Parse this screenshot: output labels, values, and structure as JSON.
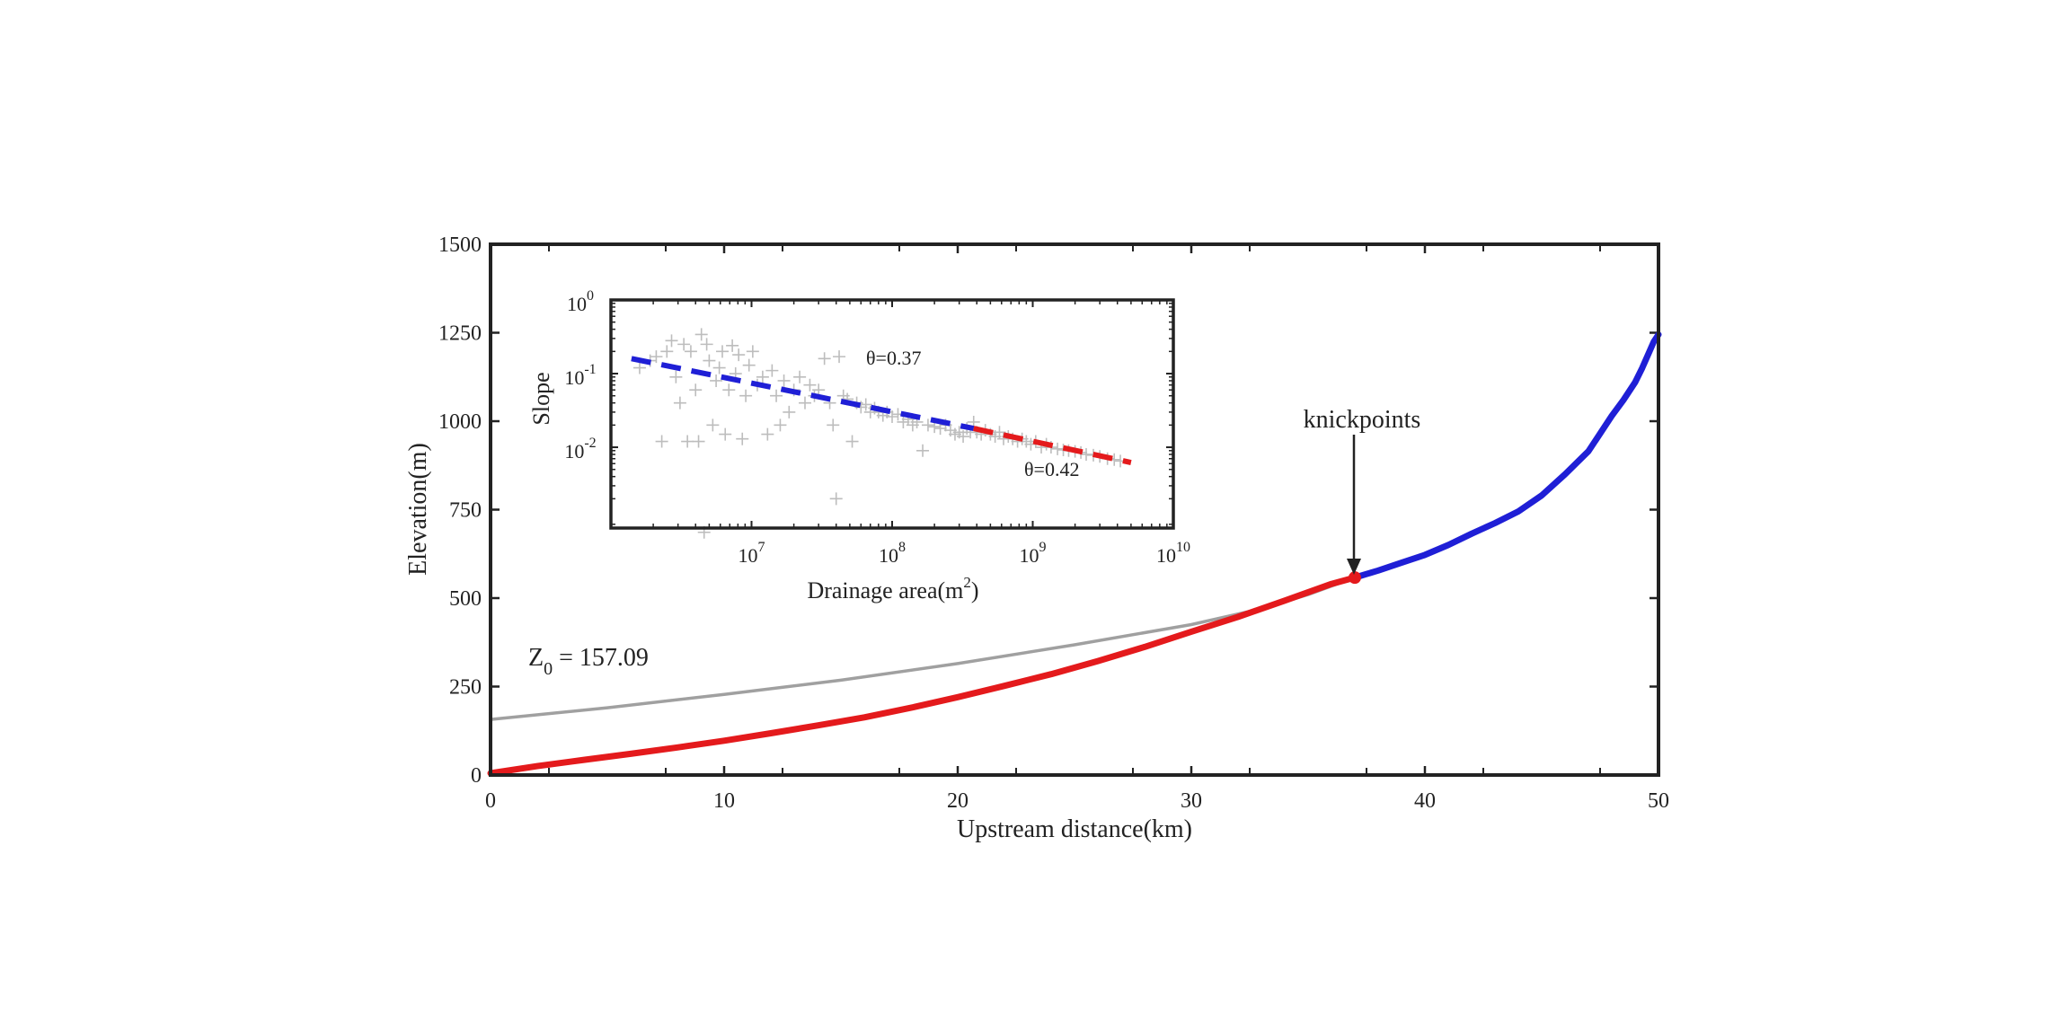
{
  "chart_data": [
    {
      "type": "line",
      "xlabel": "Upstream distance(km)",
      "ylabel": "Elevation(m)",
      "xlim": [
        0,
        50
      ],
      "ylim": [
        0,
        1500
      ],
      "xticks": [
        "0",
        "10",
        "20",
        "30",
        "40",
        "50"
      ],
      "yticks": [
        "0",
        "250",
        "500",
        "750",
        "1000",
        "1250",
        "1500"
      ],
      "series": [
        {
          "color": "#e41a1c",
          "x": [
            0,
            2,
            4,
            6,
            8,
            10,
            12,
            14,
            16,
            18,
            20,
            22,
            24,
            26,
            28,
            30,
            32,
            34,
            36,
            37
          ],
          "y": [
            5,
            25,
            43,
            60,
            78,
            97,
            118,
            140,
            163,
            190,
            220,
            252,
            285,
            322,
            362,
            405,
            447,
            493,
            540,
            558
          ]
        },
        {
          "color": "#1f1fd6",
          "x": [
            37,
            38,
            39,
            40,
            41,
            42,
            43,
            44,
            45,
            46,
            47,
            48,
            48.5,
            49,
            49.3,
            49.6,
            49.8,
            50
          ],
          "y": [
            558,
            578,
            600,
            622,
            650,
            682,
            712,
            745,
            790,
            850,
            915,
            1015,
            1060,
            1110,
            1150,
            1195,
            1225,
            1245
          ]
        },
        {
          "color": "#a0a0a0",
          "x": [
            0,
            5,
            10,
            15,
            20,
            25,
            30,
            33,
            35,
            37
          ],
          "y": [
            157,
            190,
            228,
            268,
            315,
            368,
            425,
            470,
            510,
            558
          ]
        }
      ],
      "annotations": {
        "knickpoint_label": "knickpoints",
        "knickpoint_x": 37,
        "knickpoint_y": 558,
        "z0_label": "Z",
        "z0_sub": "0",
        "z0_value": " = 157.09"
      }
    },
    {
      "type": "scatter",
      "xlabel": "Drainage area(m",
      "xlabel_sup": "2",
      "xlabel_end": ")",
      "ylabel": "Slope",
      "xscale": "log",
      "yscale": "log",
      "xlim": [
        1000000,
        10000000000
      ],
      "ylim": [
        0.0008,
        1
      ],
      "xticks": [
        {
          "base": "10",
          "exp": "7",
          "value": 10000000
        },
        {
          "base": "10",
          "exp": "8",
          "value": 100000000
        },
        {
          "base": "10",
          "exp": "9",
          "value": 1000000000
        },
        {
          "base": "10",
          "exp": "10",
          "value": 10000000000
        }
      ],
      "yticks": [
        {
          "base": "10",
          "exp": "0",
          "value": 1
        },
        {
          "base": "10",
          "exp": "-1",
          "value": 0.1
        },
        {
          "base": "10",
          "exp": "-2",
          "value": 0.01
        }
      ],
      "points": [
        [
          1600000,
          0.12
        ],
        [
          1900000,
          0.15
        ],
        [
          2100000,
          0.17
        ],
        [
          2300000,
          0.012
        ],
        [
          2500000,
          0.2
        ],
        [
          2700000,
          0.28
        ],
        [
          2900000,
          0.09
        ],
        [
          3100000,
          0.04
        ],
        [
          3300000,
          0.25
        ],
        [
          3500000,
          0.012
        ],
        [
          3700000,
          0.2
        ],
        [
          4000000,
          0.06
        ],
        [
          4200000,
          0.012
        ],
        [
          4400000,
          0.34
        ],
        [
          4600000,
          0.0007
        ],
        [
          4800000,
          0.25
        ],
        [
          5000000,
          0.15
        ],
        [
          5300000,
          0.02
        ],
        [
          5600000,
          0.08
        ],
        [
          5900000,
          0.12
        ],
        [
          6200000,
          0.2
        ],
        [
          6500000,
          0.015
        ],
        [
          6900000,
          0.06
        ],
        [
          7300000,
          0.24
        ],
        [
          7700000,
          0.1
        ],
        [
          8100000,
          0.18
        ],
        [
          8600000,
          0.013
        ],
        [
          9100000,
          0.05
        ],
        [
          9600000,
          0.13
        ],
        [
          10200000,
          0.2
        ],
        [
          11000000,
          0.07
        ],
        [
          12000000,
          0.09
        ],
        [
          13000000,
          0.015
        ],
        [
          14000000,
          0.11
        ],
        [
          15000000,
          0.05
        ],
        [
          16000000,
          0.02
        ],
        [
          17000000,
          0.08
        ],
        [
          18500000,
          0.03
        ],
        [
          20000000,
          0.06
        ],
        [
          22000000,
          0.09
        ],
        [
          24000000,
          0.04
        ],
        [
          26000000,
          0.07
        ],
        [
          28000000,
          0.05
        ],
        [
          30000000,
          0.06
        ],
        [
          33000000,
          0.16
        ],
        [
          36000000,
          0.04
        ],
        [
          38000000,
          0.02
        ],
        [
          40000000,
          0.002
        ],
        [
          42000000,
          0.17
        ],
        [
          45000000,
          0.05
        ],
        [
          48000000,
          0.045
        ],
        [
          52000000,
          0.012
        ],
        [
          56000000,
          0.04
        ],
        [
          60000000,
          0.035
        ],
        [
          65000000,
          0.038
        ],
        [
          70000000,
          0.03
        ],
        [
          75000000,
          0.034
        ],
        [
          80000000,
          0.03
        ],
        [
          86000000,
          0.027
        ],
        [
          92000000,
          0.03
        ],
        [
          100000000,
          0.026
        ],
        [
          110000000,
          0.028
        ],
        [
          120000000,
          0.022
        ],
        [
          130000000,
          0.024
        ],
        [
          140000000,
          0.02
        ],
        [
          150000000,
          0.022
        ],
        [
          165000000,
          0.009
        ],
        [
          180000000,
          0.02
        ],
        [
          200000000,
          0.019
        ],
        [
          220000000,
          0.018
        ],
        [
          240000000,
          0.02
        ],
        [
          260000000,
          0.017
        ],
        [
          280000000,
          0.015
        ],
        [
          300000000,
          0.016
        ],
        [
          320000000,
          0.014
        ],
        [
          340000000,
          0.018
        ],
        [
          360000000,
          0.016
        ],
        [
          380000000,
          0.022
        ],
        [
          400000000,
          0.016
        ],
        [
          430000000,
          0.015
        ],
        [
          460000000,
          0.017
        ],
        [
          500000000,
          0.015
        ],
        [
          540000000,
          0.014
        ],
        [
          580000000,
          0.016
        ],
        [
          620000000,
          0.013
        ],
        [
          670000000,
          0.014
        ],
        [
          720000000,
          0.013
        ],
        [
          780000000,
          0.012
        ],
        [
          840000000,
          0.013
        ],
        [
          900000000,
          0.012
        ],
        [
          970000000,
          0.011
        ],
        [
          1050000000,
          0.012
        ],
        [
          1150000000,
          0.01
        ],
        [
          1250000000,
          0.011
        ],
        [
          1350000000,
          0.01
        ],
        [
          1500000000,
          0.0095
        ],
        [
          1650000000,
          0.0092
        ],
        [
          1800000000,
          0.009
        ],
        [
          2000000000,
          0.0088
        ],
        [
          2200000000,
          0.0085
        ],
        [
          2400000000,
          0.008
        ],
        [
          2700000000,
          0.0078
        ],
        [
          3000000000,
          0.0075
        ],
        [
          3400000000,
          0.007
        ],
        [
          3800000000,
          0.0068
        ],
        [
          4200000000,
          0.0065
        ]
      ],
      "fits": [
        {
          "color": "#1f1fd6",
          "x": [
            1400000,
            380000000
          ],
          "y": [
            0.16,
            0.018
          ]
        },
        {
          "color": "#e41a1c",
          "x": [
            380000000,
            5000000000
          ],
          "y": [
            0.018,
            0.0062
          ]
        }
      ],
      "annotations": {
        "theta_upper": "θ=0.37",
        "theta_lower": "θ=0.42"
      }
    }
  ]
}
